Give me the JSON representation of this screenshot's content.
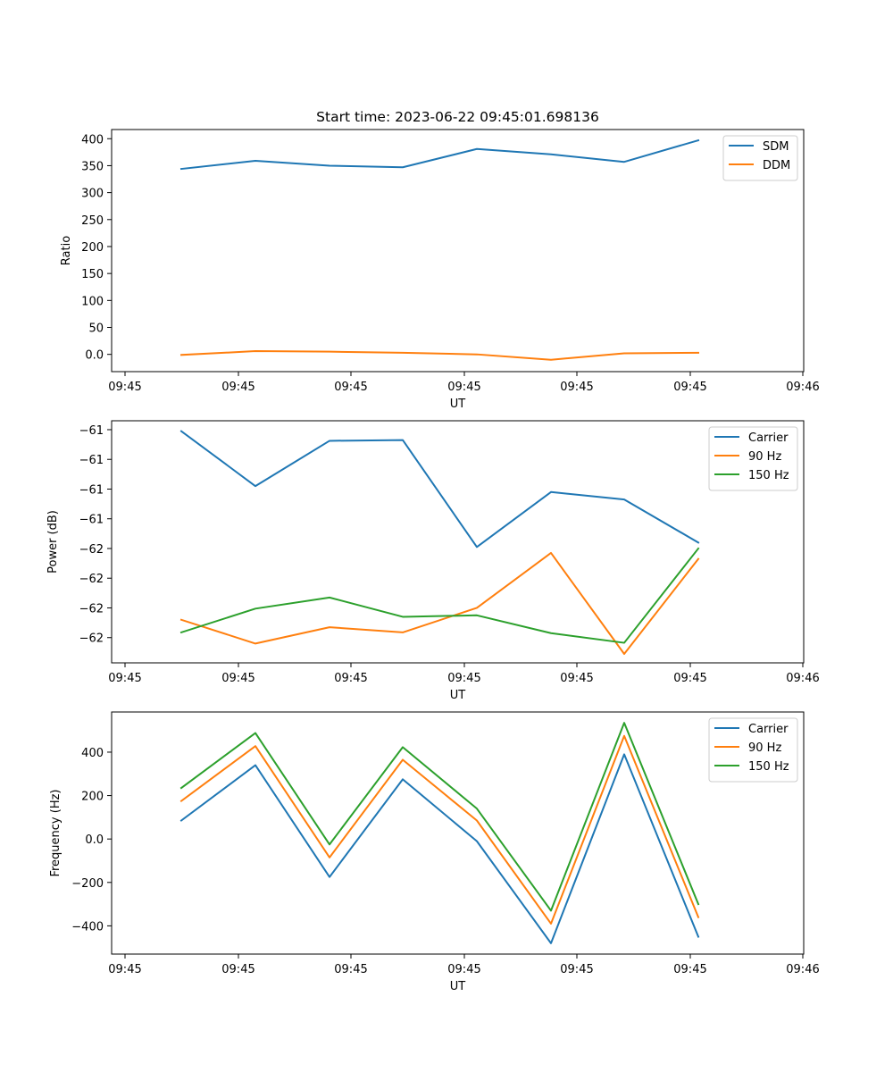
{
  "figure": {
    "title": "Start time: 2023-06-22 09:45:01.698136"
  },
  "chart_data": [
    {
      "type": "line",
      "title": "Start time: 2023-06-22 09:45:01.698136",
      "xlabel": "UT",
      "ylabel": "Ratio",
      "x_tick_labels": [
        "09:45",
        "09:45",
        "09:45",
        "09:45",
        "09:45",
        "09:45",
        "09:46"
      ],
      "y_ticks": [
        0,
        50,
        100,
        150,
        200,
        250,
        300,
        350,
        400
      ],
      "ylim": [
        -32,
        417
      ],
      "grid": false,
      "legend_position": "top-right",
      "series": [
        {
          "name": "SDM",
          "color": "#1f77b4",
          "values": [
            344,
            359,
            350,
            347,
            381,
            371,
            357,
            397
          ]
        },
        {
          "name": "DDM",
          "color": "#ff7f0e",
          "values": [
            -1,
            6,
            5,
            3,
            0,
            -10,
            2,
            3
          ]
        }
      ]
    },
    {
      "type": "line",
      "title": "",
      "xlabel": "UT",
      "ylabel": "Power (dB)",
      "x_tick_labels": [
        "09:45",
        "09:45",
        "09:45",
        "09:45",
        "09:45",
        "09:45",
        "09:46"
      ],
      "y_ticks": [
        -60.8,
        -61.0,
        -61.2,
        -61.4,
        -61.6,
        -61.8,
        -62.0,
        -62.2
      ],
      "ylim": [
        -62.37,
        -60.74
      ],
      "grid": false,
      "legend_position": "top-right",
      "series": [
        {
          "name": "Carrier",
          "color": "#1f77b4",
          "values": [
            -60.81,
            -61.18,
            -60.875,
            -60.87,
            -61.59,
            -61.22,
            -61.27,
            -61.56
          ]
        },
        {
          "name": "90 Hz",
          "color": "#ff7f0e",
          "values": [
            -62.08,
            -62.24,
            -62.13,
            -62.165,
            -62.0,
            -61.63,
            -62.31,
            -61.67
          ]
        },
        {
          "name": "150 Hz",
          "color": "#2ca02c",
          "values": [
            -62.165,
            -62.005,
            -61.93,
            -62.06,
            -62.05,
            -62.17,
            -62.235,
            -61.6
          ]
        }
      ]
    },
    {
      "type": "line",
      "title": "",
      "xlabel": "UT",
      "ylabel": "Frequency (Hz)",
      "x_tick_labels": [
        "09:45",
        "09:45",
        "09:45",
        "09:45",
        "09:45",
        "09:45",
        "09:46"
      ],
      "y_ticks": [
        -400,
        -200,
        0,
        200,
        400
      ],
      "ylim": [
        -530,
        585
      ],
      "grid": false,
      "legend_position": "top-right",
      "series": [
        {
          "name": "Carrier",
          "color": "#1f77b4",
          "values": [
            85,
            340,
            -175,
            275,
            -10,
            -480,
            390,
            -450
          ]
        },
        {
          "name": "90 Hz",
          "color": "#ff7f0e",
          "values": [
            175,
            428,
            -85,
            365,
            85,
            -390,
            475,
            -360
          ]
        },
        {
          "name": "150 Hz",
          "color": "#2ca02c",
          "values": [
            235,
            488,
            -25,
            423,
            140,
            -330,
            535,
            -300
          ]
        }
      ]
    }
  ]
}
